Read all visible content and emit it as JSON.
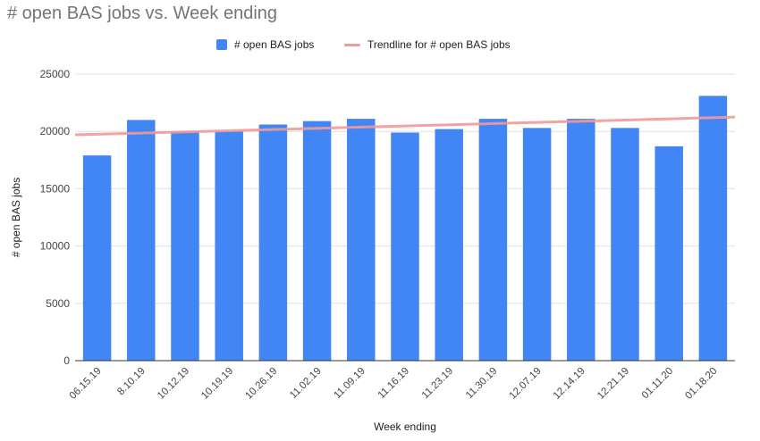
{
  "chart_data": {
    "type": "bar",
    "title": "# open BAS jobs vs. Week ending",
    "xlabel": "Week ending",
    "ylabel": "# open BAS jobs",
    "ylim": [
      0,
      25000
    ],
    "yticks": [
      "0",
      "5000",
      "10000",
      "15000",
      "20000",
      "25000"
    ],
    "categories": [
      "06.15.19",
      "8.10.19",
      "10.12.19",
      "10.19.19",
      "10.26.19",
      "11.02.19",
      "11.09.19",
      "11.16.19",
      "11.23.19",
      "11.30.19",
      "12.07.19",
      "12.14.19",
      "12.21.19",
      "01.11.20",
      "01.18.20"
    ],
    "series": [
      {
        "name": "# open BAS jobs",
        "color": "#4285f4",
        "values": [
          17900,
          21000,
          20000,
          20000,
          20600,
          20900,
          21100,
          19900,
          20200,
          21100,
          20300,
          21100,
          20300,
          18700,
          23100
        ]
      }
    ],
    "trendline": {
      "name": "Trendline for # open BAS jobs",
      "color": "#f19a99",
      "start": 19700,
      "end": 21250
    },
    "grid": true,
    "legend_position": "top"
  }
}
